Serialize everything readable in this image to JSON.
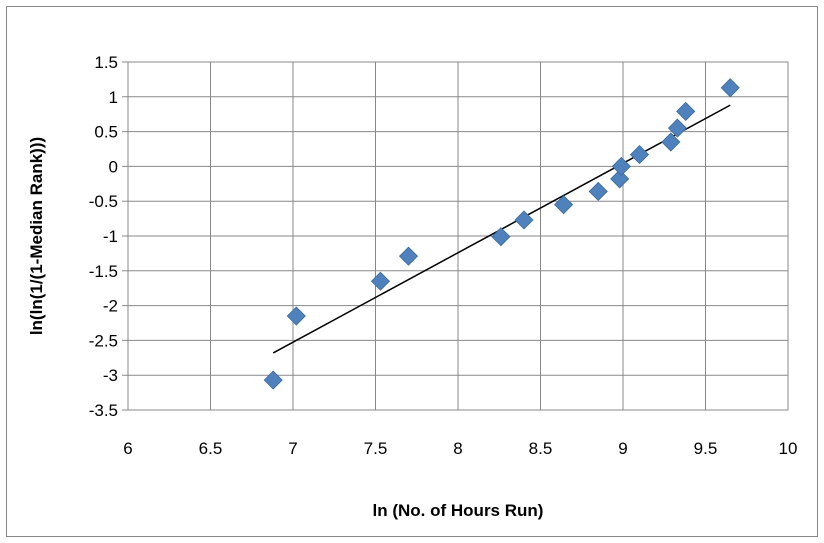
{
  "chart_data": {
    "type": "scatter",
    "title": "",
    "xlabel": "ln (No. of Hours Run)",
    "ylabel": "ln(ln(1/(1-Median Rank)))",
    "xlim": [
      6,
      10
    ],
    "ylim": [
      -3.5,
      1.5
    ],
    "x_ticks": [
      "6",
      "6.5",
      "7",
      "7.5",
      "8",
      "8.5",
      "9",
      "9.5",
      "10"
    ],
    "y_ticks": [
      "1.5",
      "1",
      "0.5",
      "0",
      "-0.5",
      "-1",
      "-1.5",
      "-2",
      "-2.5",
      "-3",
      "-3.5"
    ],
    "grid": true,
    "legend": "none",
    "series": [
      {
        "marker": "diamond",
        "color": "#4F81BD",
        "points": [
          {
            "x": 6.88,
            "y": -3.07
          },
          {
            "x": 7.02,
            "y": -2.15
          },
          {
            "x": 7.53,
            "y": -1.65
          },
          {
            "x": 7.7,
            "y": -1.29
          },
          {
            "x": 8.26,
            "y": -1.01
          },
          {
            "x": 8.4,
            "y": -0.77
          },
          {
            "x": 8.64,
            "y": -0.55
          },
          {
            "x": 8.85,
            "y": -0.36
          },
          {
            "x": 8.98,
            "y": -0.18
          },
          {
            "x": 8.99,
            "y": 0.0
          },
          {
            "x": 9.1,
            "y": 0.17
          },
          {
            "x": 9.29,
            "y": 0.35
          },
          {
            "x": 9.33,
            "y": 0.55
          },
          {
            "x": 9.38,
            "y": 0.79
          },
          {
            "x": 9.65,
            "y": 1.13
          }
        ]
      }
    ],
    "trendline": {
      "type": "linear",
      "color": "#000000",
      "x": [
        6.88,
        9.65
      ],
      "y": [
        -2.68,
        0.88
      ]
    }
  }
}
